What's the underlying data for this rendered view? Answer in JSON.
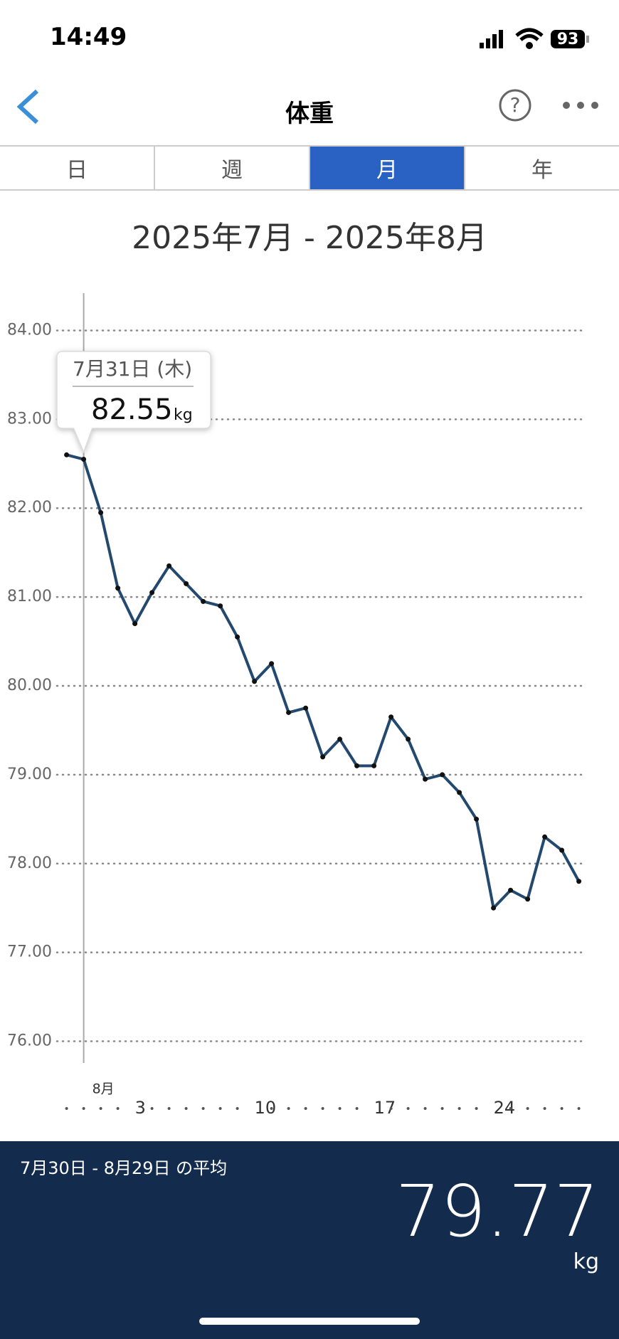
{
  "status_bar": {
    "time": "14:49",
    "battery": "93"
  },
  "header": {
    "title": "体重"
  },
  "tabs": {
    "items": [
      "日",
      "週",
      "月",
      "年"
    ],
    "selected": 2
  },
  "chart_data": {
    "type": "line",
    "title": "2025年7月 - 2025年8月",
    "unit": "kg",
    "categories": [
      null,
      null,
      "8月",
      null,
      "3",
      null,
      null,
      null,
      null,
      null,
      null,
      "10",
      null,
      null,
      null,
      null,
      null,
      null,
      "17",
      null,
      null,
      null,
      null,
      null,
      null,
      "24",
      null,
      null,
      null,
      null,
      null
    ],
    "series": [
      {
        "name": "体重",
        "color": "#24496f",
        "values": [
          82.6,
          82.55,
          81.95,
          81.1,
          80.7,
          81.05,
          81.35,
          81.15,
          80.95,
          80.9,
          80.55,
          80.05,
          80.25,
          79.7,
          79.75,
          79.2,
          79.4,
          79.1,
          79.1,
          79.65,
          79.4,
          78.95,
          79.0,
          78.8,
          78.5,
          77.5,
          77.7,
          77.6,
          78.3,
          78.15,
          77.8
        ]
      }
    ],
    "ylim": [
      75.74,
      84.34
    ],
    "yticks": [
      {
        "value": 76,
        "label": "76.00"
      },
      {
        "value": 77,
        "label": "77.00"
      },
      {
        "value": 78,
        "label": "78.00"
      },
      {
        "value": 79,
        "label": "79.00"
      },
      {
        "value": 80,
        "label": "80.00"
      },
      {
        "value": 81,
        "label": "81.00"
      },
      {
        "value": 82,
        "label": "82.00"
      },
      {
        "value": 83,
        "label": "83.00"
      },
      {
        "value": 84,
        "label": "84.00"
      }
    ],
    "grid": true,
    "selected_index": 1
  },
  "tooltip": {
    "date": "7月31日 (木)"
  },
  "summary": {
    "range_label": "7月30日 - 8月29日 の平均",
    "value": "79.77"
  }
}
